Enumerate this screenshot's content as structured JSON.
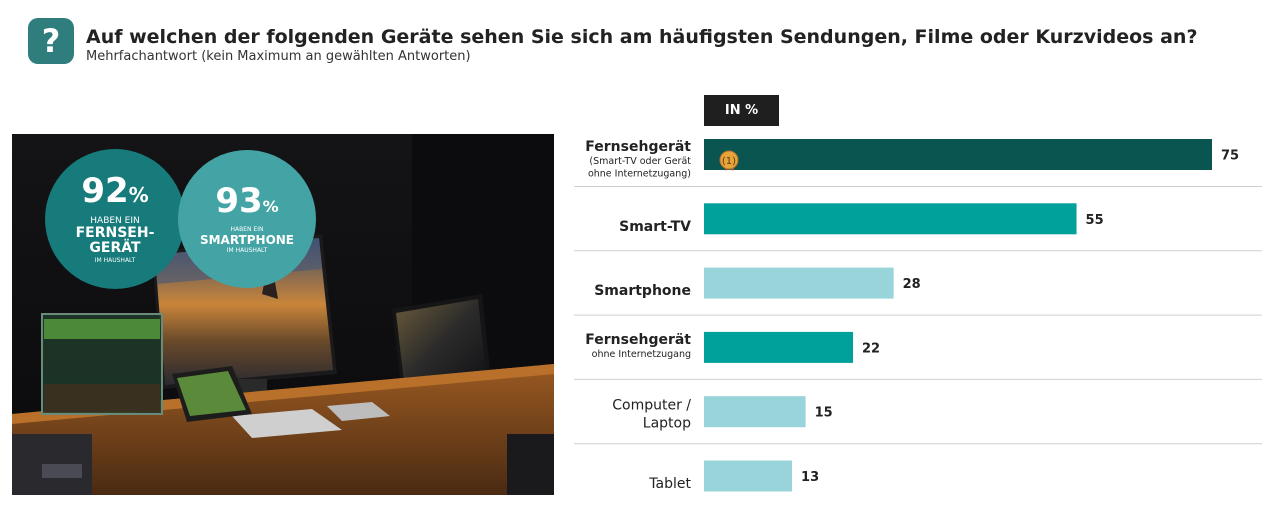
{
  "header": {
    "icon": "question-icon",
    "icon_glyph": "?",
    "title": "Auf welchen der folgenden Geräte sehen Sie sich am häufigsten Sendungen, Filme oder Kurzvideos an?",
    "subtitle": "Mehrfachantwort (kein Maximum an gewählten Antworten)"
  },
  "unit_label": "IN %",
  "stats": {
    "tv": {
      "value": "92",
      "unit": "%",
      "line1": "HABEN EIN",
      "line2a": "FERNSEH-",
      "line2b": "GERÄT",
      "line3": "IM HAUSHALT"
    },
    "phone": {
      "value": "93",
      "unit": "%",
      "line1": "HABEN EIN",
      "line2": "SMARTPHONE",
      "line3": "IM HAUSHALT"
    }
  },
  "colors": {
    "dark": "#0b5550",
    "mid": "#00a19a",
    "light": "#98d4d9",
    "accent_icon": "#2f7d7c"
  },
  "chart_data": {
    "type": "bar",
    "orientation": "horizontal",
    "categories": [
      {
        "label": "Fernsehgerät",
        "sub": [
          "(Smart-TV oder Gerät",
          "ohne Internetzugang)"
        ],
        "bold": true
      },
      {
        "label": "Smart-TV",
        "sub": [],
        "bold": true
      },
      {
        "label": "Smartphone",
        "sub": [],
        "bold": true
      },
      {
        "label": "Fernsehgerät",
        "sub": [
          "ohne Internetzugang"
        ],
        "bold": true
      },
      {
        "label": "Computer /",
        "label2": "Laptop",
        "sub": [],
        "bold": false
      },
      {
        "label": "Tablet",
        "sub": [],
        "bold": false
      }
    ],
    "values": [
      75,
      55,
      28,
      22,
      15,
      13
    ],
    "bar_colors": [
      "#0b5550",
      "#00a19a",
      "#98d4d9",
      "#00a19a",
      "#98d4d9",
      "#98d4d9"
    ],
    "badge": {
      "index": 0,
      "text": "1",
      "icon": "rank-badge-icon"
    },
    "xlim": [
      0,
      75
    ]
  }
}
